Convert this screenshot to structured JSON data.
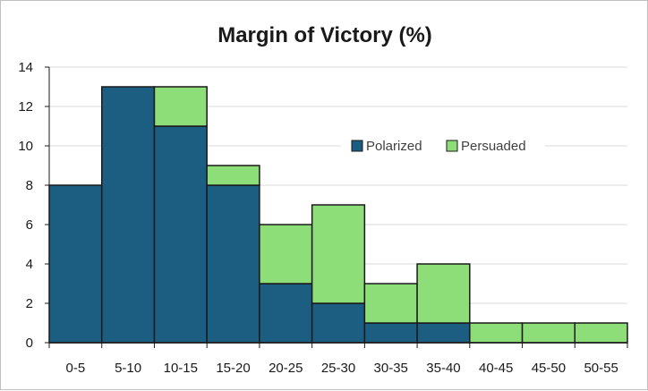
{
  "chart_data": {
    "type": "bar",
    "stacked": true,
    "title": "Margin of Victory (%)",
    "categories": [
      "0-5",
      "5-10",
      "10-15",
      "15-20",
      "20-25",
      "25-30",
      "30-35",
      "35-40",
      "40-45",
      "45-50",
      "50-55"
    ],
    "series": [
      {
        "name": "Polarized",
        "color": "#1b5e82",
        "values": [
          8,
          13,
          11,
          8,
          3,
          2,
          1,
          1,
          0,
          0,
          0
        ]
      },
      {
        "name": "Persuaded",
        "color": "#8dde78",
        "values": [
          0,
          0,
          2,
          1,
          3,
          5,
          2,
          3,
          1,
          1,
          1
        ]
      }
    ],
    "ylim": [
      0,
      14
    ],
    "yticks": [
      0,
      2,
      4,
      6,
      8,
      10,
      12,
      14
    ],
    "grid": true,
    "legend_position": "inside-top-right"
  }
}
